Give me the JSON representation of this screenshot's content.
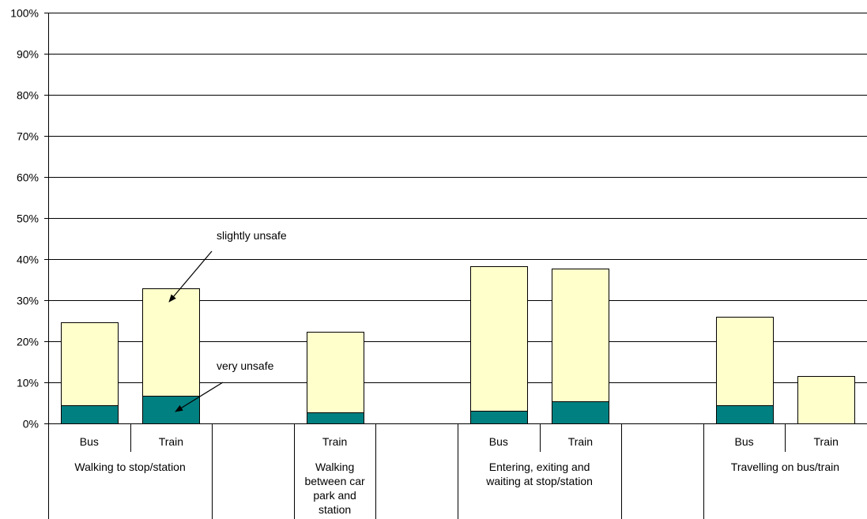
{
  "colors": {
    "very_unsafe": "#008080",
    "slightly_unsafe": "#FFFFCC",
    "gridline": "#000000",
    "bar_outline": "#000000"
  },
  "chart_data": {
    "type": "bar",
    "stacked": true,
    "title": "",
    "xlabel": "",
    "ylabel": "",
    "ylim": [
      0,
      100
    ],
    "y_ticks": [
      "0%",
      "10%",
      "20%",
      "30%",
      "40%",
      "50%",
      "60%",
      "70%",
      "80%",
      "90%",
      "100%"
    ],
    "grid": true,
    "groups": [
      "Walking to stop/station",
      "",
      "Walking between car park and station",
      "",
      "Entering, exiting and waiting at stop/station",
      "",
      "Travelling on bus/train"
    ],
    "categories": [
      "Bus",
      "Train",
      "",
      "Train",
      "",
      "Bus",
      "Train",
      "",
      "Bus",
      "Train"
    ],
    "series": [
      {
        "values": [
          4.5,
          6.8,
          null,
          2.6,
          null,
          3.0,
          5.4,
          null,
          4.4,
          0
        ]
      },
      {
        "values": [
          20.2,
          26.0,
          null,
          19.8,
          null,
          35.3,
          32.2,
          null,
          21.5,
          11.6
        ]
      }
    ],
    "annotations": [
      {
        "text": "slightly unsafe",
        "series": 1,
        "category": 1
      },
      {
        "text": "very unsafe",
        "series": 0,
        "category": 1
      }
    ]
  }
}
